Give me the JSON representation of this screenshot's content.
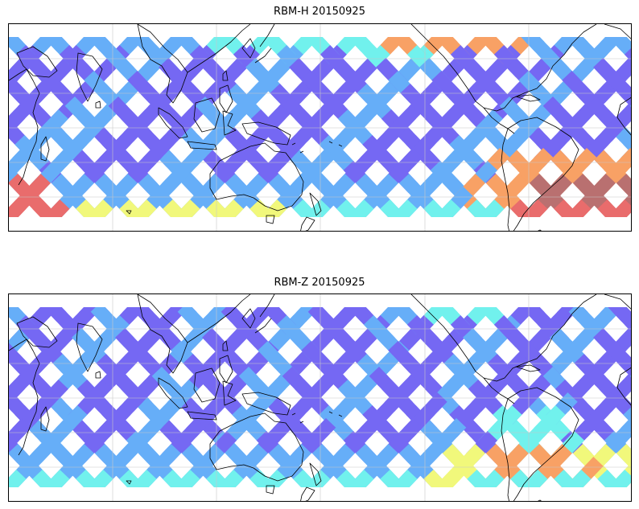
{
  "panels": [
    {
      "id": "rbm-h",
      "title": "RBM-H 20150925",
      "variant": "high"
    },
    {
      "id": "rbm-z",
      "title": "RBM-Z 20150925",
      "variant": "low"
    }
  ],
  "map": {
    "projection": "cylindrical",
    "gridlines": true,
    "coastlines": true,
    "features": [
      "Asia",
      "Australia",
      "New Zealand",
      "South America",
      "North America",
      "Africa",
      "Antarctica tip"
    ]
  },
  "colors": {
    "background": "#ffffff",
    "frame": "#000000",
    "grid": "#c8c8c8",
    "coast": "#000000",
    "swath_low": "#6a5cf2",
    "swath_mid": "#5aa8f8",
    "swath_cyan": "#66f0ec",
    "swath_yellow": "#f0f870",
    "swath_orange": "#f89a58",
    "swath_red": "#e86060",
    "swath_maroon": "#b46464"
  }
}
